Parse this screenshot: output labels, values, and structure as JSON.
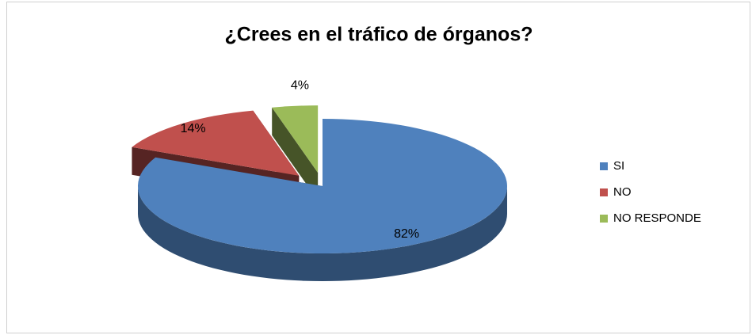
{
  "chart_data": {
    "type": "pie",
    "title": "¿Crees en el tráfico de órganos?",
    "categories": [
      "SI",
      "NO",
      "NO RESPONDE"
    ],
    "values": [
      82,
      14,
      4
    ],
    "value_labels": [
      "82%",
      "14%",
      "4%"
    ],
    "colors": [
      "#4f81bd",
      "#c0504d",
      "#9bbb59"
    ],
    "legend": "right"
  }
}
